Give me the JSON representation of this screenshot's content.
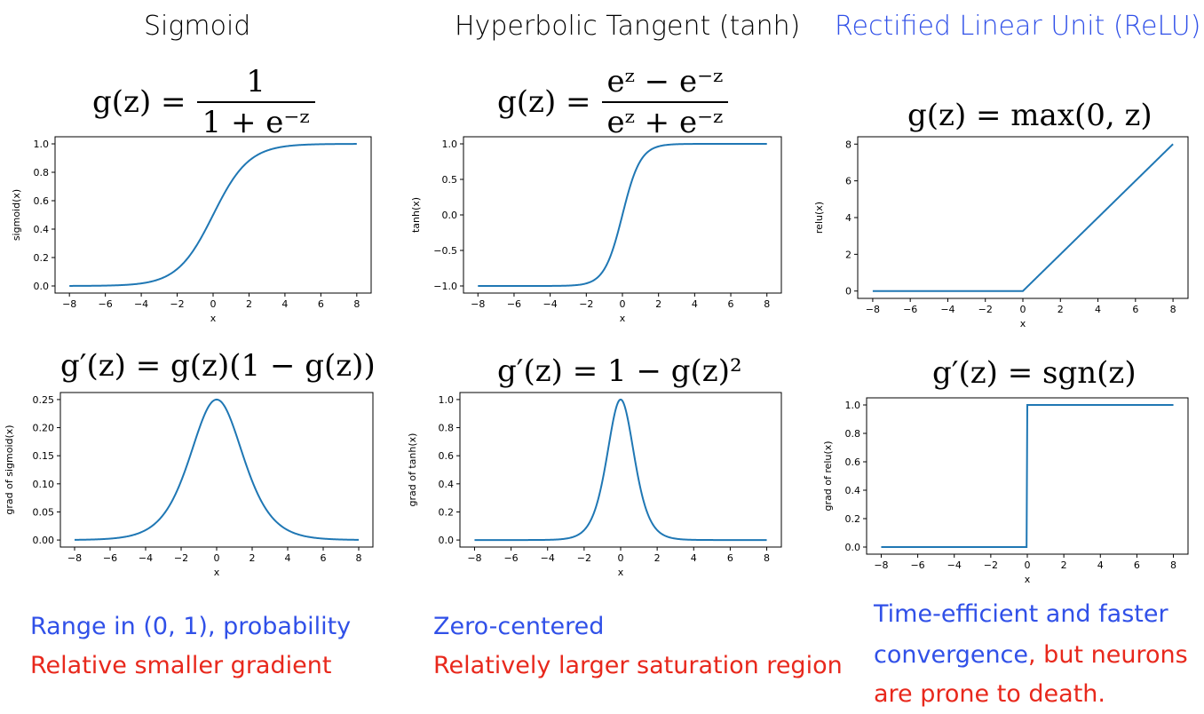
{
  "titles": {
    "sigmoid": "Sigmoid",
    "tanh": "Hyperbolic Tangent (tanh)",
    "relu": "Rectified Linear Unit (ReLU)"
  },
  "formulas": {
    "sigmoid": {
      "lhs": "g(z) =",
      "num": "1",
      "den": "1 + e⁻ᶻ"
    },
    "tanh": {
      "lhs": "g(z) =",
      "num": "eᶻ − e⁻ᶻ",
      "den": "eᶻ + e⁻ᶻ"
    },
    "relu": "g(z) = max(0, z)",
    "sigmoid_grad": "g′(z) = g(z)(1 − g(z))",
    "tanh_grad": "g′(z) = 1 − g(z)²",
    "relu_grad": "g′(z) = sgn(z)"
  },
  "notes": {
    "sigmoid_1": "Range in (0, 1), probability",
    "sigmoid_2": "Relative smaller gradient",
    "tanh_1": "Zero-centered",
    "tanh_2": "Relatively larger saturation region",
    "relu_1": "Time-efficient and faster",
    "relu_2a": "convergence",
    "relu_2b": ", but neurons",
    "relu_3": "are prone to death."
  },
  "colors": {
    "line": "#1f77b4",
    "blue_text": "#3050e8",
    "red_text": "#e8281c"
  },
  "chart_data": [
    {
      "id": "sigmoid",
      "type": "line",
      "function": "sigmoid",
      "xlabel": "x",
      "ylabel": "sigmoid(x)",
      "xlim": [
        -8,
        8
      ],
      "ylim": [
        0,
        1
      ],
      "xticks": [
        -8,
        -6,
        -4,
        -2,
        0,
        2,
        4,
        6,
        8
      ],
      "yticks": [
        0.0,
        0.2,
        0.4,
        0.6,
        0.8,
        1.0
      ],
      "ytick_labels": [
        "0.0",
        "0.2",
        "0.4",
        "0.6",
        "0.8",
        "1.0"
      ]
    },
    {
      "id": "tanh",
      "type": "line",
      "function": "tanh",
      "xlabel": "x",
      "ylabel": "tanh(x)",
      "xlim": [
        -8,
        8
      ],
      "ylim": [
        -1,
        1
      ],
      "xticks": [
        -8,
        -6,
        -4,
        -2,
        0,
        2,
        4,
        6,
        8
      ],
      "yticks": [
        -1.0,
        -0.5,
        0.0,
        0.5,
        1.0
      ],
      "ytick_labels": [
        "−1.0",
        "−0.5",
        "0.0",
        "0.5",
        "1.0"
      ]
    },
    {
      "id": "relu",
      "type": "line",
      "function": "relu",
      "xlabel": "x",
      "ylabel": "relu(x)",
      "xlim": [
        -8,
        8
      ],
      "ylim": [
        0,
        8
      ],
      "xticks": [
        -8,
        -6,
        -4,
        -2,
        0,
        2,
        4,
        6,
        8
      ],
      "yticks": [
        0,
        2,
        4,
        6,
        8
      ],
      "ytick_labels": [
        "0",
        "2",
        "4",
        "6",
        "8"
      ]
    },
    {
      "id": "sigmoid_grad",
      "type": "line",
      "function": "sigmoid_grad",
      "xlabel": "x",
      "ylabel": "grad of sigmoid(x)",
      "xlim": [
        -8,
        8
      ],
      "ylim": [
        0,
        0.25
      ],
      "xticks": [
        -8,
        -6,
        -4,
        -2,
        0,
        2,
        4,
        6,
        8
      ],
      "yticks": [
        0.0,
        0.05,
        0.1,
        0.15,
        0.2,
        0.25
      ],
      "ytick_labels": [
        "0.00",
        "0.05",
        "0.10",
        "0.15",
        "0.20",
        "0.25"
      ]
    },
    {
      "id": "tanh_grad",
      "type": "line",
      "function": "tanh_grad",
      "xlabel": "x",
      "ylabel": "grad of tanh(x)",
      "xlim": [
        -8,
        8
      ],
      "ylim": [
        0,
        1
      ],
      "xticks": [
        -8,
        -6,
        -4,
        -2,
        0,
        2,
        4,
        6,
        8
      ],
      "yticks": [
        0.0,
        0.2,
        0.4,
        0.6,
        0.8,
        1.0
      ],
      "ytick_labels": [
        "0.0",
        "0.2",
        "0.4",
        "0.6",
        "0.8",
        "1.0"
      ]
    },
    {
      "id": "relu_grad",
      "type": "line",
      "function": "step",
      "xlabel": "x",
      "ylabel": "grad of relu(x)",
      "xlim": [
        -8,
        8
      ],
      "ylim": [
        0,
        1
      ],
      "xticks": [
        -8,
        -6,
        -4,
        -2,
        0,
        2,
        4,
        6,
        8
      ],
      "yticks": [
        0.0,
        0.2,
        0.4,
        0.6,
        0.8,
        1.0
      ],
      "ytick_labels": [
        "0.0",
        "0.2",
        "0.4",
        "0.6",
        "0.8",
        "1.0"
      ]
    }
  ]
}
